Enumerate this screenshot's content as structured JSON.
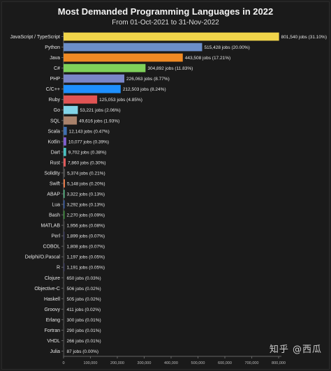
{
  "chart_data": {
    "type": "bar",
    "orientation": "horizontal",
    "title": "Most Demanded Programming Languages in 2022",
    "subtitle": "From 01-Oct-2021 to 31-Nov-2022",
    "categories": [
      "JavaScript / TypeScript",
      "Python",
      "Java",
      "C#",
      "PHP",
      "C/C++",
      "Ruby",
      "Go",
      "SQL",
      "Scala",
      "Kotlin",
      "Dart",
      "Rust",
      "Solidity",
      "Swift",
      "ABAP",
      "Lua",
      "Bash",
      "MATLAB",
      "Perl",
      "COBOL",
      "Delphi/O.Pascal",
      "R",
      "Clojure",
      "Objective-C",
      "Haskell",
      "Groovy",
      "Erlang",
      "Fortran",
      "VHDL",
      "Julia"
    ],
    "values": [
      801540,
      515428,
      443508,
      304892,
      226063,
      212503,
      125053,
      53221,
      49616,
      12143,
      10077,
      9702,
      7860,
      5374,
      5148,
      3322,
      3292,
      2270,
      1956,
      1899,
      1808,
      1197,
      1191,
      650,
      506,
      505,
      411,
      300,
      290,
      266,
      87
    ],
    "data_labels": [
      "801,540 jobs (31.10%)",
      "515,428 jobs (20.00%)",
      "443,508 jobs (17.21%)",
      "304,892 jobs (11.83%)",
      "226,063 jobs (8.77%)",
      "212,503 jobs (8.24%)",
      "125,053 jobs (4.85%)",
      "53,221 jobs (2.06%)",
      "49,616 jobs (1.93%)",
      "12,143 jobs (0.47%)",
      "10,077 jobs (0.39%)",
      "9,702 jobs (0.38%)",
      "7,860 jobs (0.30%)",
      "5,374 jobs (0.21%)",
      "5,148 jobs (0.20%)",
      "3,322 jobs (0.13%)",
      "3,292 jobs (0.13%)",
      "2,270 jobs (0.09%)",
      "1,956 jobs (0.08%)",
      "1,899 jobs (0.07%)",
      "1,808 jobs (0.07%)",
      "1,197 jobs (0.05%)",
      "1,191 jobs (0.05%)",
      "650 jobs (0.03%)",
      "506 jobs (0.02%)",
      "505 jobs (0.02%)",
      "411 jobs (0.02%)",
      "300 jobs (0.01%)",
      "290 jobs (0.01%)",
      "266 jobs (0.01%)",
      "87 jobs (0.00%)"
    ],
    "colors": [
      "#f1d54a",
      "#6b8ec9",
      "#f08a24",
      "#7fd15a",
      "#7a86c9",
      "#1e90ff",
      "#e05454",
      "#82d4e8",
      "#a9826b",
      "#3f6fb0",
      "#7f5fd0",
      "#4ac0c0",
      "#e05a5a",
      "#505050",
      "#e87a4a",
      "#5ac08a",
      "#3a5fa8",
      "#3c8f3c",
      "#444444",
      "#3a3a5a",
      "#3a3a3a",
      "#3a3a3a",
      "#3a3a5a",
      "#333333",
      "#333333",
      "#333333",
      "#333333",
      "#333333",
      "#333333",
      "#333333",
      "#333333"
    ],
    "x_ticks": [
      "0",
      "100,000",
      "200,000",
      "300,000",
      "400,000",
      "500,000",
      "600,000",
      "700,000",
      "800,000"
    ],
    "xlim": [
      0,
      800000
    ],
    "grid": false
  },
  "watermark": "知乎 @西瓜",
  "colors": {
    "background": "#1a1a1a",
    "text": "#e6e6e6",
    "axis": "#888888"
  }
}
